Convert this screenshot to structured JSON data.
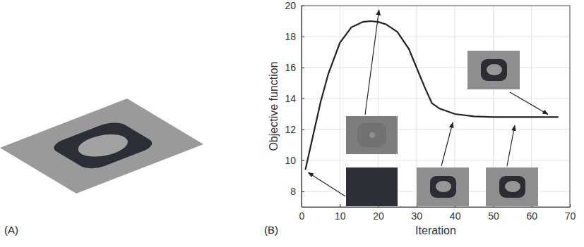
{
  "figure": {
    "panel_labels": [
      "(A)",
      "(B)"
    ]
  },
  "chart_data": {
    "type": "line",
    "x_label": "Iteration",
    "y_label": "Objective function",
    "x": [
      1,
      3,
      5,
      7,
      10,
      13,
      16,
      18,
      20,
      22,
      25,
      28,
      30,
      32,
      34,
      36,
      40,
      45,
      50,
      55,
      58,
      62,
      65,
      67
    ],
    "values": [
      9.4,
      11.6,
      13.8,
      15.6,
      17.6,
      18.6,
      18.95,
      19.0,
      18.95,
      18.8,
      18.3,
      17.2,
      16.0,
      14.8,
      13.7,
      13.35,
      13.0,
      12.85,
      12.8,
      12.8,
      12.8,
      12.8,
      12.8,
      12.8
    ],
    "color": "#222222",
    "xlim": [
      0,
      70
    ],
    "xticks": [
      0,
      10,
      20,
      30,
      40,
      50,
      60,
      70
    ],
    "ylim": [
      7,
      20
    ],
    "yticks": [
      8,
      10,
      12,
      14,
      16,
      18,
      20
    ],
    "grid": true
  }
}
